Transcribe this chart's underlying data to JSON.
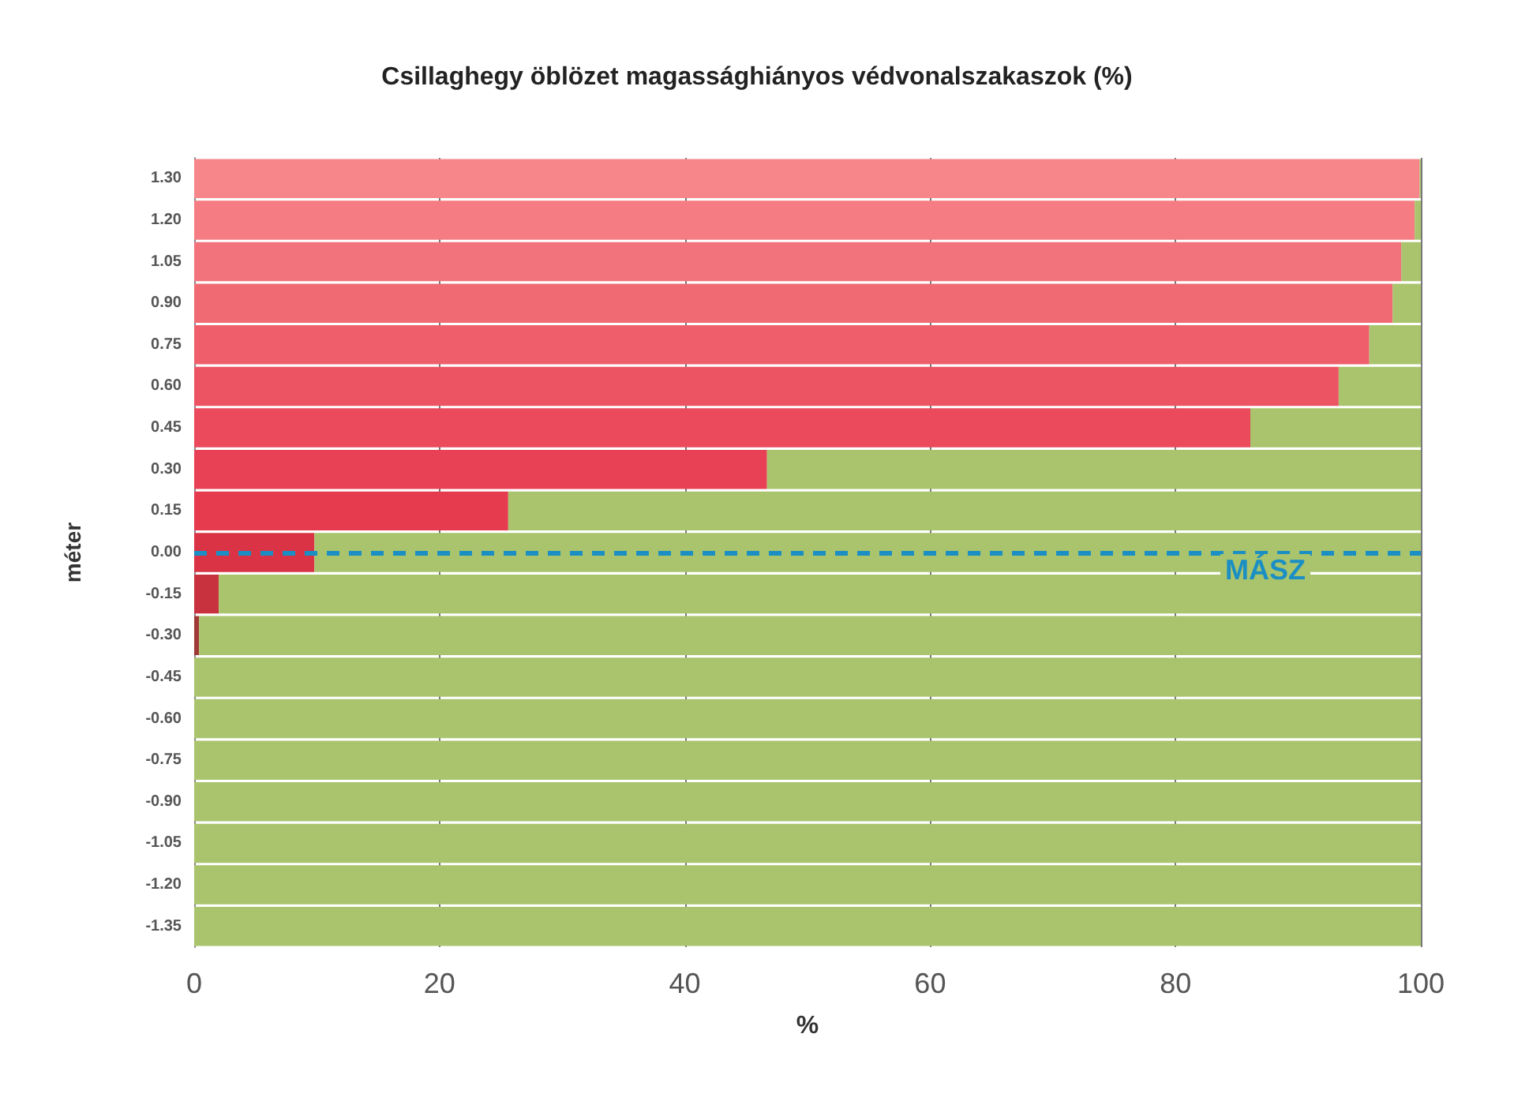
{
  "chart_data": {
    "type": "bar",
    "orientation": "horizontal",
    "stacked": true,
    "title": "Csillaghegy öblözet magassághiányos védvonalszakaszok (%)",
    "xlabel": "%",
    "ylabel": "méter",
    "categories": [
      "1.30",
      "1.20",
      "1.05",
      "0.90",
      "0.75",
      "0.60",
      "0.45",
      "0.30",
      "0.15",
      "0.00",
      "-0.15",
      "-0.30",
      "-0.45",
      "-0.60",
      "-0.75",
      "-0.90",
      "-1.05",
      "-1.20",
      "-1.35"
    ],
    "series": [
      {
        "colors": [
          "#f6868a",
          "#f47c82",
          "#f2737b",
          "#f06a74",
          "#ee5f6b",
          "#ec5464",
          "#ea4a5c",
          "#e84155",
          "#e63a4f",
          "#d93345",
          "#c8323e",
          "#a03a36",
          "#a03a36",
          "#a03a36",
          "#a03a36",
          "#a03a36",
          "#a03a36",
          "#a03a36",
          "#a03a36"
        ],
        "values": [
          99.9,
          99.5,
          98.4,
          97.7,
          95.8,
          93.3,
          86.1,
          46.7,
          25.6,
          9.8,
          2.0,
          0.4,
          0,
          0,
          0,
          0,
          0,
          0,
          0
        ]
      },
      {
        "color": "#a9c46c",
        "values": [
          0.1,
          0.5,
          1.6,
          2.3,
          4.2,
          6.7,
          13.9,
          53.3,
          74.4,
          90.2,
          98.0,
          99.6,
          100,
          100,
          100,
          100,
          100,
          100,
          100
        ]
      }
    ],
    "xlim": [
      0,
      100
    ],
    "xticks": [
      0,
      20,
      40,
      60,
      80,
      100
    ],
    "grid": "x",
    "ref_lines": [
      {
        "axis": "y",
        "value": "0.00",
        "label": "MÁSZ",
        "color": "#1b8fc4",
        "line_style": "dashed"
      }
    ]
  }
}
